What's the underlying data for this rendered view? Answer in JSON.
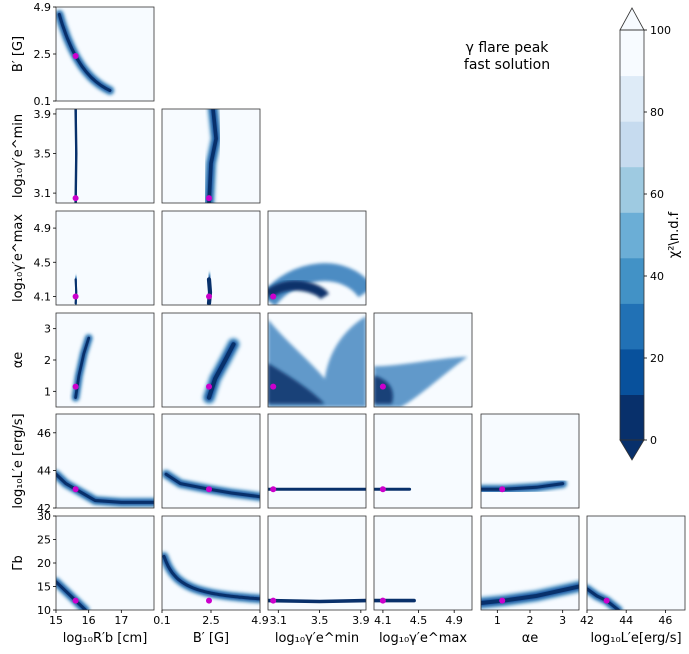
{
  "annotation": {
    "line1": "γ flare peak",
    "line2": "fast solution"
  },
  "colorbar": {
    "label": "χ²\\n.d.f",
    "ticks": [
      "0",
      "20",
      "40",
      "60",
      "80",
      "100"
    ],
    "range": [
      0,
      100
    ],
    "extend": "both",
    "colors": [
      "#08306b",
      "#08519c",
      "#2171b5",
      "#4292c6",
      "#6baed6",
      "#9ecae1",
      "#c6dbef",
      "#deebf7",
      "#f7fbff"
    ]
  },
  "chart_data": {
    "type": "heatmap",
    "layout": "corner-plot lower triangle, 6 parameters",
    "params": [
      {
        "key": "R",
        "label": "log₁₀R′b [cm]",
        "range": [
          15,
          18
        ],
        "ticks": [
          "15",
          "16",
          "17"
        ],
        "best": 15.6
      },
      {
        "key": "B",
        "label": "B′ [G]",
        "range": [
          0.1,
          4.9
        ],
        "ticks": [
          "0.1",
          "2.5",
          "4.9"
        ],
        "best": 2.4
      },
      {
        "key": "gmin",
        "label": "log₁₀γ′e^min",
        "range": [
          3.0,
          3.95
        ],
        "ticks": [
          "3.1",
          "3.5",
          "3.9"
        ],
        "best": 3.05
      },
      {
        "key": "gmax",
        "label": "log₁₀γ′e^max",
        "range": [
          4.0,
          5.1
        ],
        "ticks": [
          "4.1",
          "4.5",
          "4.9"
        ],
        "best": 4.1
      },
      {
        "key": "alpha",
        "label": "αe",
        "range": [
          0.5,
          3.5
        ],
        "ticks": [
          "1",
          "2",
          "3"
        ],
        "best": 1.15
      },
      {
        "key": "L",
        "label": "log₁₀L′e[erg/s]",
        "range": [
          42,
          47
        ],
        "ticks": [
          "42",
          "44",
          "46"
        ],
        "best": 43
      }
    ],
    "row_labels": [
      "B′ [G]",
      "log₁₀γ′e^min",
      "log₁₀γ′e^max",
      "αe",
      "log₁₀L′e [erg/s]",
      "Γb"
    ],
    "row_ticks": [
      [
        "0.1",
        "2.5",
        "4.9"
      ],
      [
        "3.1",
        "3.5",
        "3.9"
      ],
      [
        "4.1",
        "4.5",
        "4.9"
      ],
      [
        "1",
        "2",
        "3"
      ],
      [
        "42",
        "44",
        "46"
      ],
      [
        "10",
        "15",
        "20",
        "25",
        "30"
      ]
    ],
    "gamma": {
      "label": "Γb",
      "range": [
        10,
        30
      ],
      "best": 12
    },
    "best_fit_marker_color": "#cc00cc"
  }
}
